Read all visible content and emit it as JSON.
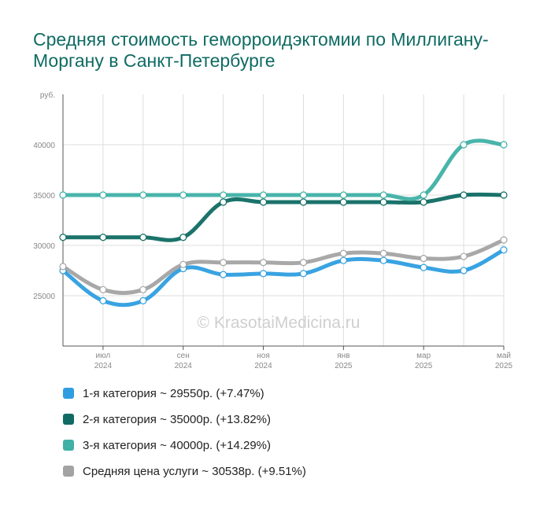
{
  "title": "Средняя стоимость геморроидэктомии по Миллигану-Моргану в Санкт-Петербурге",
  "watermark": "© KrasotaiMedicina.ru",
  "colors": {
    "cat1": "#2e9ee0",
    "cat2": "#0f6b63",
    "cat3": "#3fb0a5",
    "avg": "#a3a3a3",
    "grid": "#dddddd",
    "axis": "#555555",
    "tick": "#888888"
  },
  "legend": [
    {
      "label": "1-я категория ~ 29550р. (+7.47%)",
      "color": "#2e9ee0"
    },
    {
      "label": "2-я категория ~ 35000р. (+13.82%)",
      "color": "#0f6b63"
    },
    {
      "label": "3-я категория ~ 40000р. (+14.29%)",
      "color": "#3fb0a5"
    },
    {
      "label": "Средняя цена услуги ~ 30538р. (+9.51%)",
      "color": "#a3a3a3"
    }
  ],
  "chart_data": {
    "type": "line",
    "ylabel": "руб.",
    "ylim": [
      20000,
      45000
    ],
    "yticks": [
      25000,
      30000,
      35000,
      40000
    ],
    "x_points": 12,
    "x_tick_labels": [
      {
        "index": 1,
        "month": "июл",
        "year": "2024"
      },
      {
        "index": 3,
        "month": "сен",
        "year": "2024"
      },
      {
        "index": 5,
        "month": "ноя",
        "year": "2024"
      },
      {
        "index": 7,
        "month": "янв",
        "year": "2025"
      },
      {
        "index": 9,
        "month": "мар",
        "year": "2025"
      },
      {
        "index": 11,
        "month": "май",
        "year": "2025"
      }
    ],
    "grid": true,
    "series": [
      {
        "name": "1-я категория",
        "key": "cat1",
        "values": [
          27500,
          24500,
          24500,
          27700,
          27100,
          27200,
          27200,
          28500,
          28500,
          27800,
          27500,
          29550
        ]
      },
      {
        "name": "2-я категория",
        "key": "cat2",
        "values": [
          30800,
          30800,
          30800,
          30800,
          34300,
          34300,
          34300,
          34300,
          34300,
          34300,
          35000,
          35000
        ]
      },
      {
        "name": "3-я категория",
        "key": "cat3",
        "values": [
          35000,
          35000,
          35000,
          35000,
          35000,
          35000,
          35000,
          35000,
          35000,
          35000,
          40000,
          40000
        ]
      },
      {
        "name": "Средняя цена услуги",
        "key": "avg",
        "values": [
          27900,
          25600,
          25600,
          28100,
          28300,
          28300,
          28300,
          29200,
          29200,
          28700,
          28900,
          30538
        ]
      }
    ]
  }
}
